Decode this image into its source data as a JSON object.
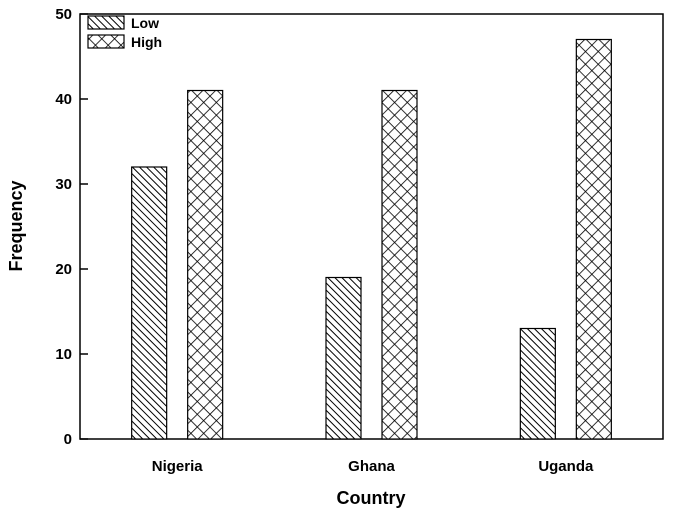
{
  "chart_data": {
    "type": "bar",
    "categories": [
      "Nigeria",
      "Ghana",
      "Uganda"
    ],
    "series": [
      {
        "name": "Low",
        "values": [
          32,
          19,
          13
        ],
        "pattern": "diagonal-hatch"
      },
      {
        "name": "High",
        "values": [
          41,
          41,
          47
        ],
        "pattern": "crosshatch"
      }
    ],
    "title": "",
    "xlabel": "Country",
    "ylabel": "Frequency",
    "ylim": [
      0,
      50
    ],
    "yticks": [
      0,
      10,
      20,
      30,
      40,
      50
    ],
    "grid": false,
    "legend_position": "top-left"
  }
}
